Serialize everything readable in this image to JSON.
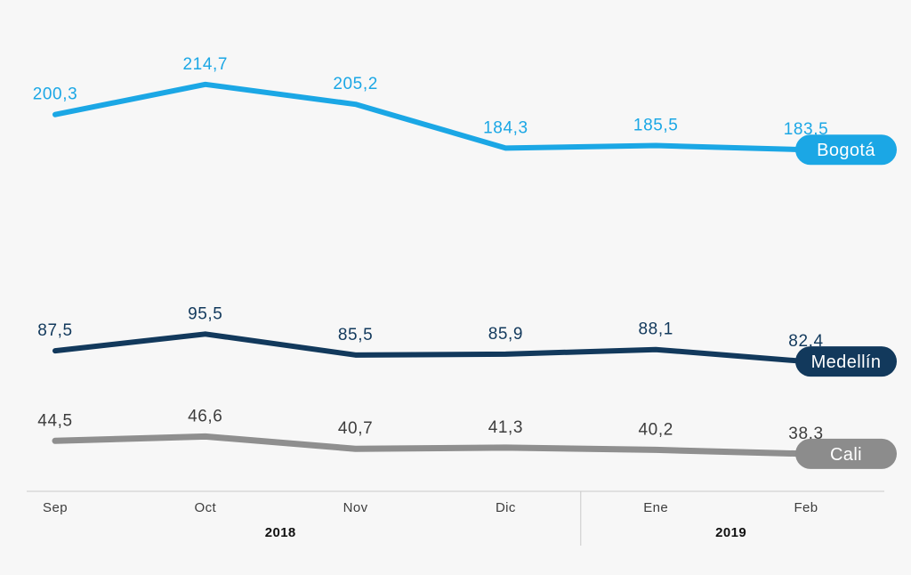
{
  "chart_data": {
    "type": "line",
    "title": "",
    "categories": [
      "Sep",
      "Oct",
      "Nov",
      "Dic",
      "Ene",
      "Feb"
    ],
    "series": [
      {
        "name": "Bogotá",
        "values": [
          200.3,
          214.7,
          205.2,
          184.3,
          185.5,
          183.5
        ],
        "labels": [
          "200,3",
          "214,7",
          "205,2",
          "184,3",
          "185,5",
          "183,5"
        ],
        "color": "#1ba7e5",
        "label_color": "#1ba7e5",
        "pill_color": "#1ba7e5",
        "stroke_width": 6
      },
      {
        "name": "Medellín",
        "values": [
          87.5,
          95.5,
          85.5,
          85.9,
          88.1,
          82.4
        ],
        "labels": [
          "87,5",
          "95,5",
          "85,5",
          "85,9",
          "88,1",
          "82,4"
        ],
        "color": "#12395c",
        "label_color": "#12395c",
        "pill_color": "#12395c",
        "stroke_width": 6
      },
      {
        "name": "Cali",
        "values": [
          44.5,
          46.6,
          40.7,
          41.3,
          40.2,
          38.3
        ],
        "labels": [
          "44,5",
          "46,6",
          "40,7",
          "41,3",
          "40,2",
          "38,3"
        ],
        "color": "#8f8f8f",
        "label_color": "#3d3d3d",
        "pill_color": "#8c8c8c",
        "stroke_width": 7
      }
    ],
    "year_groups": [
      {
        "label": "2018",
        "from": 0,
        "to": 3
      },
      {
        "label": "2019",
        "from": 4,
        "to": 5
      }
    ],
    "xlabel": "",
    "ylabel": "",
    "ylim": [
      0,
      255
    ],
    "grid": false,
    "legend_position": "right-end-pills",
    "axis_color": "#c9c9c9",
    "tick_color": "#3d3d3d",
    "year_color": "#111111"
  }
}
